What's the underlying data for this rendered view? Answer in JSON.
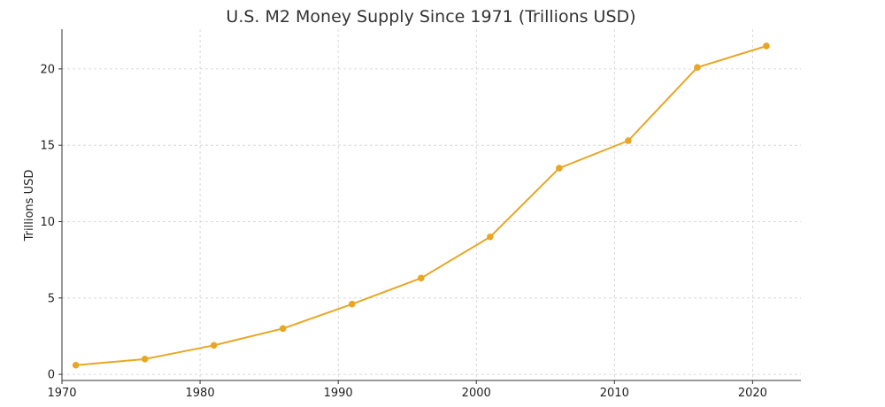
{
  "chart_data": {
    "type": "line",
    "title": "U.S. M2 Money Supply Since 1971 (Trillions USD)",
    "xlabel": "",
    "ylabel": "Trillions USD",
    "x": [
      1971,
      1976,
      1981,
      1986,
      1991,
      1996,
      2001,
      2006,
      2011,
      2016,
      2021
    ],
    "series": [
      {
        "values": [
          0.6,
          1.0,
          1.9,
          3.0,
          4.6,
          6.3,
          9.0,
          13.5,
          15.3,
          20.1,
          21.5
        ]
      }
    ],
    "xlim": [
      1970,
      2023.5
    ],
    "ylim": [
      -0.4,
      22.6
    ],
    "xticks": [
      1970,
      1980,
      1990,
      2000,
      2010,
      2020
    ],
    "yticks": [
      0,
      5,
      10,
      15,
      20
    ],
    "grid": true,
    "colors": {
      "line": "#E8A623",
      "marker": "#E8A623"
    }
  }
}
